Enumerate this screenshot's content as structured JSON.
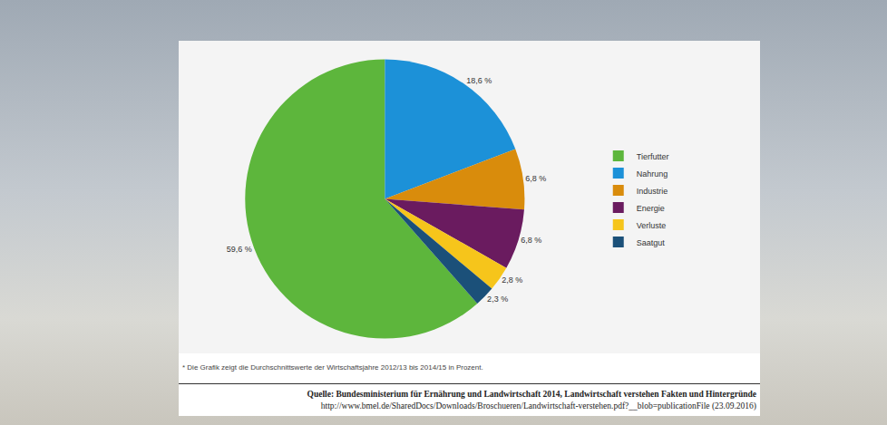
{
  "chart_data": {
    "type": "pie",
    "categories": [
      "Tierfutter",
      "Nahrung",
      "Industrie",
      "Energie",
      "Verluste",
      "Saatgut"
    ],
    "values": [
      59.6,
      18.6,
      6.8,
      6.8,
      2.8,
      2.3
    ],
    "value_labels": [
      "59,6 %",
      "18,6 %",
      "6,8 %",
      "6,8 %",
      "2,8 %",
      "2,3 %"
    ],
    "colors": [
      "#5db63c",
      "#1c91d8",
      "#d98c0c",
      "#6a1b5f",
      "#f6c51b",
      "#1b5079"
    ],
    "data_labels": true,
    "legend": "right",
    "annotations": [
      "* Die Grafik zeigt die Durchschnittswerte der Wirtschaftsjahre 2012/13 bis 2014/15 in Prozent."
    ],
    "source": [
      "Quelle: Bundesministerium für Ernährung und Landwirtschaft 2014, Landwirtschaft verstehen Fakten und Hintergründe",
      "http://www.bmel.de/SharedDocs/Downloads/Broschueren/Landwirtschaft-verstehen.pdf?__blob=publicationFile (23.09.2016)"
    ]
  }
}
